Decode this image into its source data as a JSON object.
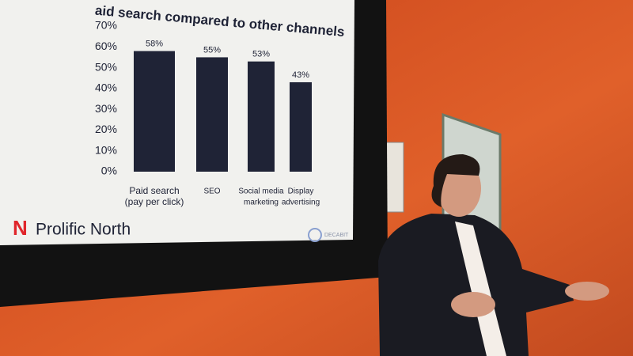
{
  "chart_data": {
    "type": "bar",
    "title": "aid search compared to other channels",
    "categories": [
      [
        "Paid search",
        "(pay per click)"
      ],
      [
        "SEO"
      ],
      [
        "Social media",
        "marketing"
      ],
      [
        "Display",
        "advertising"
      ]
    ],
    "values": [
      58,
      55,
      53,
      43
    ],
    "value_labels": [
      "58%",
      "55%",
      "53%",
      "43%"
    ],
    "color": "#1f2336",
    "ylim": [
      0,
      70
    ],
    "yticks": [
      {
        "value": 0,
        "label": "0%"
      },
      {
        "value": 10,
        "label": "10%"
      },
      {
        "value": 20,
        "label": "20%"
      },
      {
        "value": 30,
        "label": "30%"
      },
      {
        "value": 40,
        "label": "40%"
      },
      {
        "value": 50,
        "label": "50%"
      },
      {
        "value": 60,
        "label": "60%"
      },
      {
        "value": 70,
        "label": "70%"
      }
    ],
    "grid": false
  },
  "branding": {
    "logo_mark": "N",
    "logo_text": "Prolific North",
    "partner": "DECABIT"
  }
}
